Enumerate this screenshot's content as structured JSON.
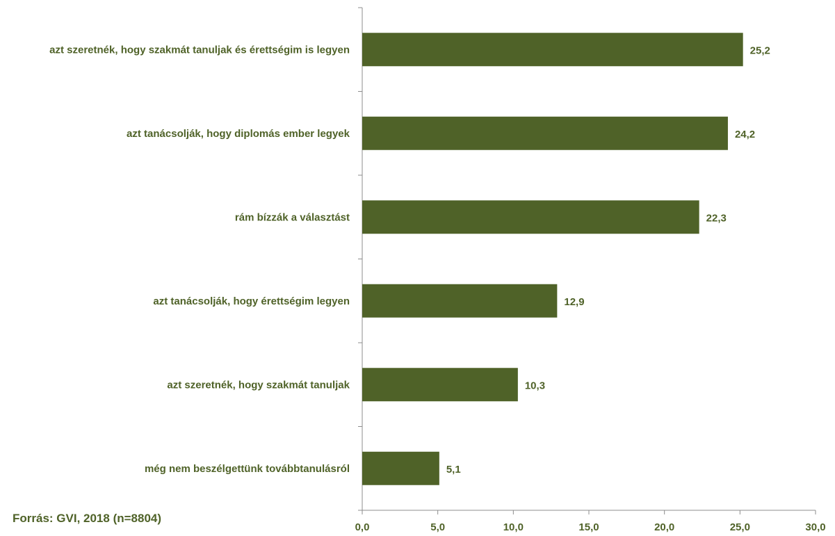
{
  "chart_data": {
    "type": "bar",
    "orientation": "horizontal",
    "categories": [
      "azt szeretnék, hogy szakmát tanuljak és érettségim is legyen",
      "azt tanácsolják, hogy diplomás ember legyek",
      "rám bízzák a választást",
      "azt tanácsolják, hogy érettségim legyen",
      "azt szeretnék, hogy szakmát tanuljak",
      "még nem beszélgettünk továbbtanulásról"
    ],
    "values": [
      25.2,
      24.2,
      22.3,
      12.9,
      10.3,
      5.1
    ],
    "value_labels": [
      "25,2",
      "24,2",
      "22,3",
      "12,9",
      "10,3",
      "5,1"
    ],
    "xlim": [
      0,
      30
    ],
    "x_ticks": [
      0,
      5,
      10,
      15,
      20,
      25,
      30
    ],
    "x_tick_labels": [
      "0,0",
      "5,0",
      "10,0",
      "15,0",
      "20,0",
      "25,0",
      "30,0"
    ],
    "grid": false,
    "bar_color": "#4f6228",
    "text_color": "#4f6228"
  },
  "source": "Forrás: GVI, 2018 (n=8804)"
}
